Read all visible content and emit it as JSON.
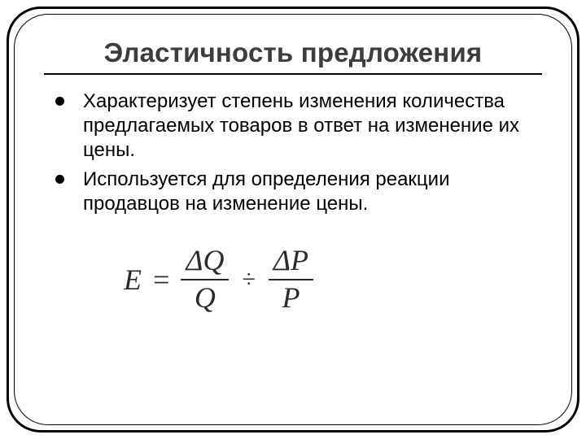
{
  "title": "Эластичность предложения",
  "title_color": "#3d3d3d",
  "title_fontsize": 33,
  "body_fontsize": 24,
  "bullet_color": "#000000",
  "frame": {
    "outer_border_color": "#000000",
    "outer_border_width": 3,
    "inner_border_color": "#000000",
    "inner_border_width": 1.5,
    "corner_radius": 42
  },
  "bullets": [
    "Характеризует степень изменения количества предлагаемых товаров в ответ на изменение их цены.",
    " Используется для определения реакции продавцов на изменение цены."
  ],
  "formula": {
    "lhs": "E",
    "eq": "=",
    "frac1_num": "ΔQ",
    "frac1_den": "Q",
    "divide": "÷",
    "frac2_num": "ΔP",
    "frac2_den": "P",
    "font_family": "Times New Roman",
    "fontsize": 36,
    "color": "#2b2b2b"
  }
}
